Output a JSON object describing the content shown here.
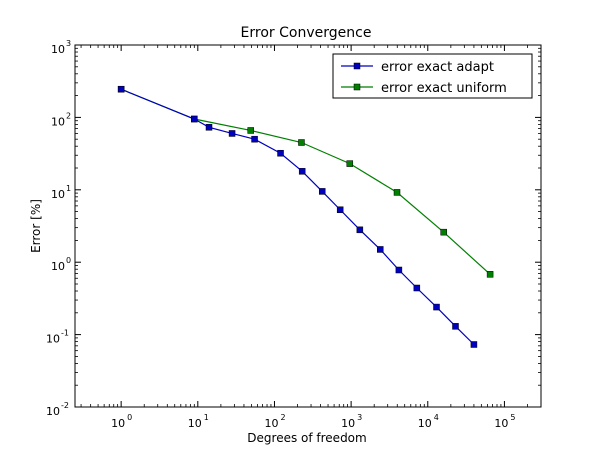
{
  "chart_data": {
    "type": "line",
    "title": "Error Convergence",
    "xlabel": "Degrees of freedom",
    "ylabel": "Error [%]",
    "x_scale": "log",
    "y_scale": "log",
    "xlim": [
      0.25,
      300000
    ],
    "ylim": [
      0.01,
      1000
    ],
    "x_ticks": [
      {
        "value": 1,
        "base": "10",
        "exp": "0"
      },
      {
        "value": 10,
        "base": "10",
        "exp": "1"
      },
      {
        "value": 100,
        "base": "10",
        "exp": "2"
      },
      {
        "value": 1000,
        "base": "10",
        "exp": "3"
      },
      {
        "value": 10000,
        "base": "10",
        "exp": "4"
      },
      {
        "value": 100000,
        "base": "10",
        "exp": "5"
      }
    ],
    "y_ticks": [
      {
        "value": 0.01,
        "base": "10",
        "exp": "-2"
      },
      {
        "value": 0.1,
        "base": "10",
        "exp": "-1"
      },
      {
        "value": 1,
        "base": "10",
        "exp": "0"
      },
      {
        "value": 10,
        "base": "10",
        "exp": "1"
      },
      {
        "value": 100,
        "base": "10",
        "exp": "2"
      },
      {
        "value": 1000,
        "base": "10",
        "exp": "3"
      }
    ],
    "legend_position": "top-right",
    "grid": false,
    "series": [
      {
        "name": "error exact adapt",
        "color": "#0000bf",
        "marker": "square",
        "points": [
          {
            "x": 1,
            "y": 245
          },
          {
            "x": 9,
            "y": 95
          },
          {
            "x": 14,
            "y": 73
          },
          {
            "x": 28,
            "y": 60
          },
          {
            "x": 55,
            "y": 50
          },
          {
            "x": 120,
            "y": 32
          },
          {
            "x": 230,
            "y": 18
          },
          {
            "x": 420,
            "y": 9.5
          },
          {
            "x": 720,
            "y": 5.3
          },
          {
            "x": 1300,
            "y": 2.8
          },
          {
            "x": 2400,
            "y": 1.5
          },
          {
            "x": 4200,
            "y": 0.78
          },
          {
            "x": 7200,
            "y": 0.44
          },
          {
            "x": 13000,
            "y": 0.24
          },
          {
            "x": 23000,
            "y": 0.13
          },
          {
            "x": 40000,
            "y": 0.073
          }
        ]
      },
      {
        "name": "error exact uniform",
        "color": "#007f00",
        "marker": "square",
        "points": [
          {
            "x": 1,
            "y": 245
          },
          {
            "x": 9,
            "y": 95
          },
          {
            "x": 49,
            "y": 66
          },
          {
            "x": 225,
            "y": 45
          },
          {
            "x": 961,
            "y": 23
          },
          {
            "x": 3969,
            "y": 9.2
          },
          {
            "x": 16129,
            "y": 2.6
          },
          {
            "x": 65025,
            "y": 0.68
          }
        ]
      }
    ]
  }
}
